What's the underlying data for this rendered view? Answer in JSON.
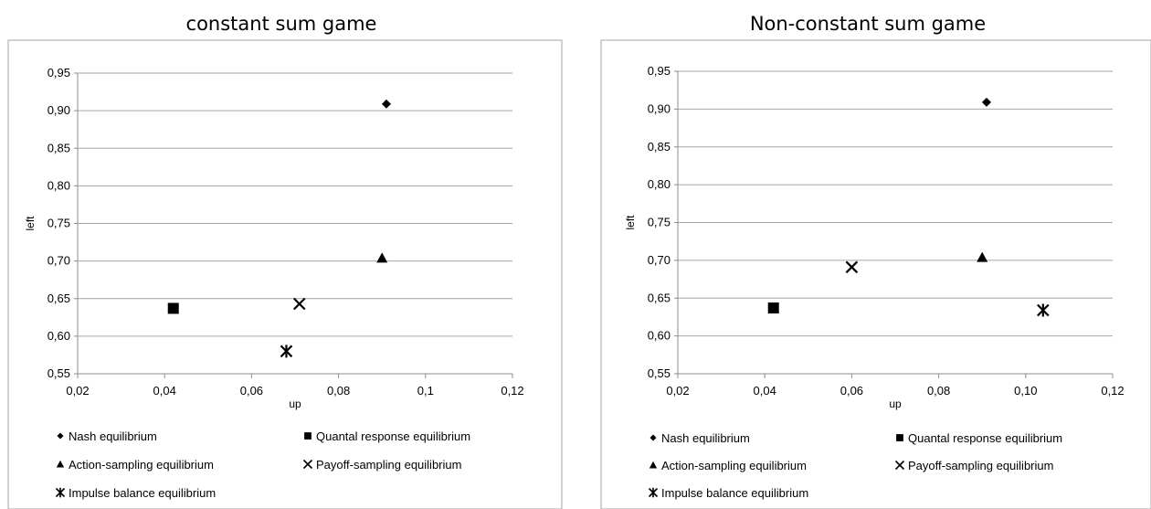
{
  "chart_data": [
    {
      "type": "scatter",
      "title": "constant sum game",
      "xlabel": "up",
      "ylabel": "left",
      "xlim": [
        0.02,
        0.12
      ],
      "ylim": [
        0.55,
        0.95
      ],
      "x_ticks": [
        "0,02",
        "0,04",
        "0,06",
        "0,08",
        "0,1",
        "0,12"
      ],
      "y_ticks": [
        "0,55",
        "0,60",
        "0,65",
        "0,70",
        "0,75",
        "0,80",
        "0,85",
        "0,90",
        "0,95"
      ],
      "grid": "horizontal",
      "legend_position": "bottom",
      "series": [
        {
          "name": "Nash equilibrium",
          "marker": "diamond",
          "points": [
            {
              "x": 0.091,
              "y": 0.909
            }
          ]
        },
        {
          "name": "Quantal response equilibrium",
          "marker": "square",
          "points": [
            {
              "x": 0.042,
              "y": 0.637
            }
          ]
        },
        {
          "name": "Action-sampling equilibrium",
          "marker": "triangle",
          "points": [
            {
              "x": 0.09,
              "y": 0.704
            }
          ]
        },
        {
          "name": "Payoff-sampling equilibrium",
          "marker": "x",
          "points": [
            {
              "x": 0.071,
              "y": 0.643
            }
          ]
        },
        {
          "name": "Impulse balance equilibrium",
          "marker": "star",
          "points": [
            {
              "x": 0.068,
              "y": 0.58
            }
          ]
        }
      ]
    },
    {
      "type": "scatter",
      "title": "Non-constant sum game",
      "xlabel": "up",
      "ylabel": "left",
      "xlim": [
        0.02,
        0.12
      ],
      "ylim": [
        0.55,
        0.95
      ],
      "x_ticks": [
        "0,02",
        "0,04",
        "0,06",
        "0,08",
        "0,10",
        "0,12"
      ],
      "y_ticks": [
        "0,55",
        "0,60",
        "0,65",
        "0,70",
        "0,75",
        "0,80",
        "0,85",
        "0,90",
        "0,95"
      ],
      "grid": "horizontal",
      "legend_position": "bottom",
      "series": [
        {
          "name": "Nash equilibrium",
          "marker": "diamond",
          "points": [
            {
              "x": 0.091,
              "y": 0.909
            }
          ]
        },
        {
          "name": "Quantal response equilibrium",
          "marker": "square",
          "points": [
            {
              "x": 0.042,
              "y": 0.637
            }
          ]
        },
        {
          "name": "Action-sampling equilibrium",
          "marker": "triangle",
          "points": [
            {
              "x": 0.09,
              "y": 0.704
            }
          ]
        },
        {
          "name": "Payoff-sampling equilibrium",
          "marker": "x",
          "points": [
            {
              "x": 0.06,
              "y": 0.691
            }
          ]
        },
        {
          "name": "Impulse balance equilibrium",
          "marker": "star",
          "points": [
            {
              "x": 0.104,
              "y": 0.634
            }
          ]
        }
      ]
    }
  ],
  "colors": {
    "marker": "#000000",
    "grid": "#a6a6a6",
    "frame": "#a6a6a6",
    "axis": "#8c8c8c"
  }
}
